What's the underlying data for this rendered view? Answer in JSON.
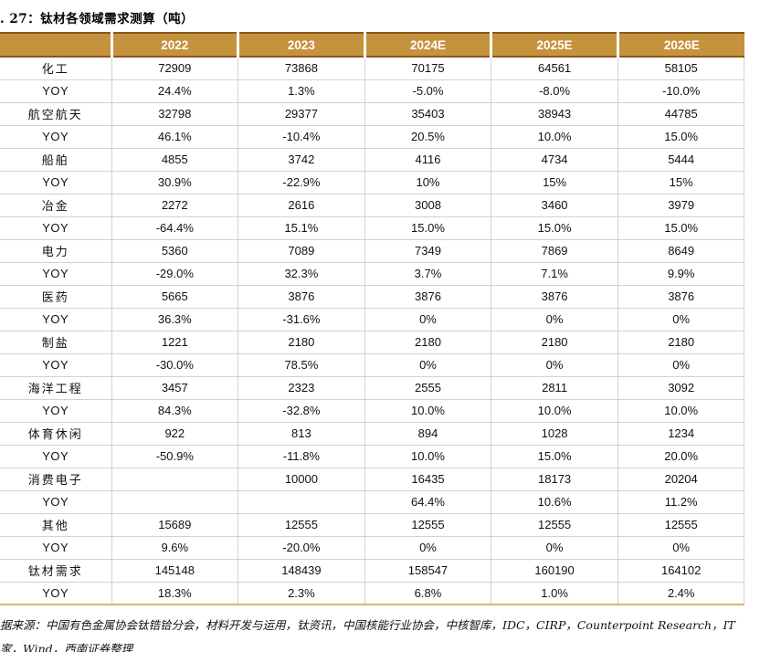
{
  "title": ". 27：钛材各领域需求测算（吨）",
  "chart_data": {
    "type": "table",
    "title": "钛材各领域需求测算（吨）",
    "columns": [
      "",
      "2022",
      "2023",
      "2024E",
      "2025E",
      "2026E"
    ],
    "rows": [
      {
        "label": "化工",
        "kind": "category",
        "values": [
          "72909",
          "73868",
          "70175",
          "64561",
          "58105"
        ]
      },
      {
        "label": "YOY",
        "kind": "yoy",
        "values": [
          "24.4%",
          "1.3%",
          "-5.0%",
          "-8.0%",
          "-10.0%"
        ]
      },
      {
        "label": "航空航天",
        "kind": "category",
        "values": [
          "32798",
          "29377",
          "35403",
          "38943",
          "44785"
        ]
      },
      {
        "label": "YOY",
        "kind": "yoy",
        "values": [
          "46.1%",
          "-10.4%",
          "20.5%",
          "10.0%",
          "15.0%"
        ]
      },
      {
        "label": "船舶",
        "kind": "category",
        "values": [
          "4855",
          "3742",
          "4116",
          "4734",
          "5444"
        ]
      },
      {
        "label": "YOY",
        "kind": "yoy",
        "values": [
          "30.9%",
          "-22.9%",
          "10%",
          "15%",
          "15%"
        ]
      },
      {
        "label": "冶金",
        "kind": "category",
        "values": [
          "2272",
          "2616",
          "3008",
          "3460",
          "3979"
        ]
      },
      {
        "label": "YOY",
        "kind": "yoy",
        "values": [
          "-64.4%",
          "15.1%",
          "15.0%",
          "15.0%",
          "15.0%"
        ]
      },
      {
        "label": "电力",
        "kind": "category",
        "values": [
          "5360",
          "7089",
          "7349",
          "7869",
          "8649"
        ]
      },
      {
        "label": "YOY",
        "kind": "yoy",
        "values": [
          "-29.0%",
          "32.3%",
          "3.7%",
          "7.1%",
          "9.9%"
        ]
      },
      {
        "label": "医药",
        "kind": "category",
        "values": [
          "5665",
          "3876",
          "3876",
          "3876",
          "3876"
        ]
      },
      {
        "label": "YOY",
        "kind": "yoy",
        "values": [
          "36.3%",
          "-31.6%",
          "0%",
          "0%",
          "0%"
        ]
      },
      {
        "label": "制盐",
        "kind": "category",
        "values": [
          "1221",
          "2180",
          "2180",
          "2180",
          "2180"
        ]
      },
      {
        "label": "YOY",
        "kind": "yoy",
        "values": [
          "-30.0%",
          "78.5%",
          "0%",
          "0%",
          "0%"
        ]
      },
      {
        "label": "海洋工程",
        "kind": "category",
        "values": [
          "3457",
          "2323",
          "2555",
          "2811",
          "3092"
        ]
      },
      {
        "label": "YOY",
        "kind": "yoy",
        "values": [
          "84.3%",
          "-32.8%",
          "10.0%",
          "10.0%",
          "10.0%"
        ]
      },
      {
        "label": "体育休闲",
        "kind": "category",
        "values": [
          "922",
          "813",
          "894",
          "1028",
          "1234"
        ]
      },
      {
        "label": "YOY",
        "kind": "yoy",
        "values": [
          "-50.9%",
          "-11.8%",
          "10.0%",
          "15.0%",
          "20.0%"
        ]
      },
      {
        "label": "消费电子",
        "kind": "category",
        "values": [
          "",
          "10000",
          "16435",
          "18173",
          "20204"
        ]
      },
      {
        "label": "YOY",
        "kind": "yoy",
        "values": [
          "",
          "",
          "64.4%",
          "10.6%",
          "11.2%"
        ]
      },
      {
        "label": "其他",
        "kind": "category",
        "values": [
          "15689",
          "12555",
          "12555",
          "12555",
          "12555"
        ]
      },
      {
        "label": "YOY",
        "kind": "yoy",
        "values": [
          "9.6%",
          "-20.0%",
          "0%",
          "0%",
          "0%"
        ]
      },
      {
        "label": "钛材需求",
        "kind": "category",
        "values": [
          "145148",
          "148439",
          "158547",
          "160190",
          "164102"
        ]
      },
      {
        "label": "YOY",
        "kind": "yoy",
        "values": [
          "18.3%",
          "2.3%",
          "6.8%",
          "1.0%",
          "2.4%"
        ]
      }
    ]
  },
  "footer": {
    "line1": "据来源：中国有色金属协会钛锆铪分会，材料开发与运用，钛资讯，中国核能行业协会，中核智库，IDC，CIRP，Counterpoint Research，IT",
    "line2": "家，Wind，西南证券整理"
  },
  "colors": {
    "header_bg": "#C6923E",
    "header_text": "#FFFFFF",
    "header_border": "#85591B",
    "grid_line": "#D2D2D2",
    "table_bottom_border": "#D9B477",
    "body_text": "#111111"
  }
}
